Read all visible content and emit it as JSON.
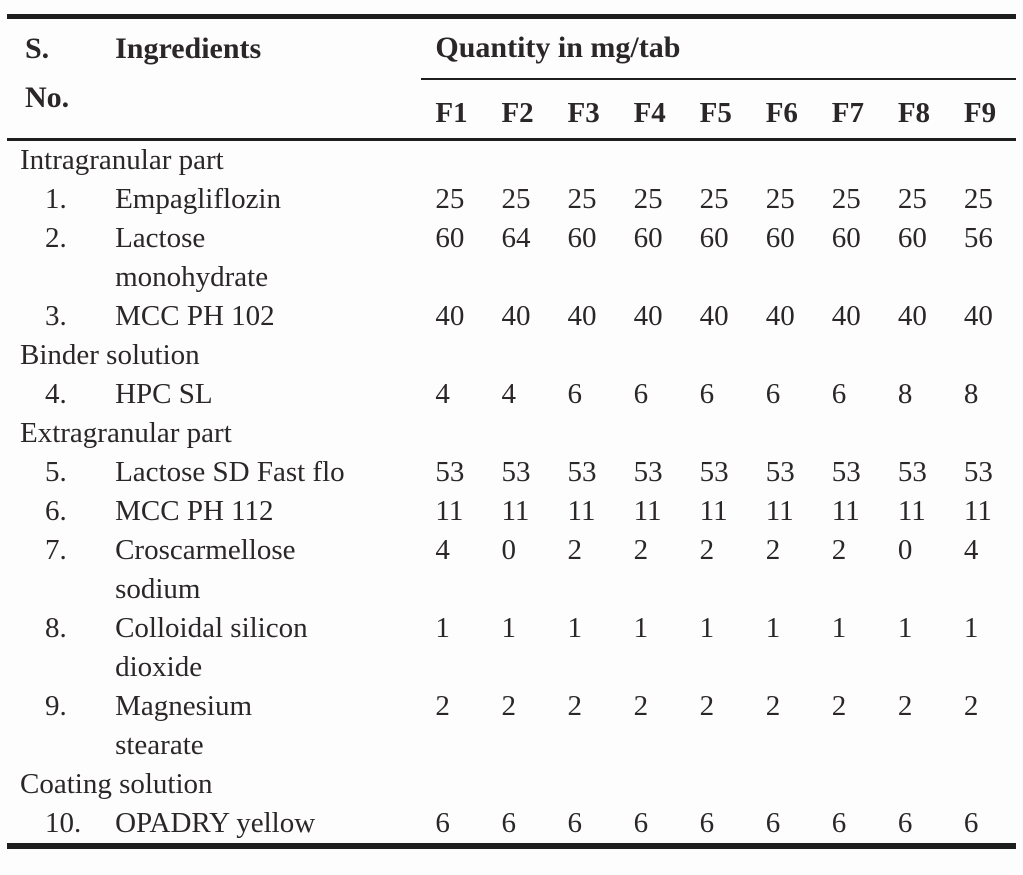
{
  "table": {
    "header": {
      "sno_line1": "S.",
      "sno_line2": "No.",
      "ingredients_label": "Ingredients",
      "quantity_label": "Quantity in mg/tab",
      "formulations": [
        "F1",
        "F2",
        "F3",
        "F4",
        "F5",
        "F6",
        "F7",
        "F8",
        "F9"
      ]
    },
    "sections": [
      {
        "title": "Intragranular part",
        "rows": [
          {
            "sno": "1.",
            "ingredient": "Empagliflozin",
            "values": [
              25,
              25,
              25,
              25,
              25,
              25,
              25,
              25,
              25
            ]
          },
          {
            "sno": "2.",
            "ingredient": "Lactose\nmonohydrate",
            "values": [
              60,
              64,
              60,
              60,
              60,
              60,
              60,
              60,
              56
            ]
          },
          {
            "sno": "3.",
            "ingredient": "MCC PH 102",
            "values": [
              40,
              40,
              40,
              40,
              40,
              40,
              40,
              40,
              40
            ]
          }
        ]
      },
      {
        "title": "Binder solution",
        "rows": [
          {
            "sno": "4.",
            "ingredient": "HPC SL",
            "values": [
              4,
              4,
              6,
              6,
              6,
              6,
              6,
              8,
              8
            ]
          }
        ]
      },
      {
        "title": "Extragranular part",
        "rows": [
          {
            "sno": "5.",
            "ingredient": "Lactose SD Fast flo",
            "values": [
              53,
              53,
              53,
              53,
              53,
              53,
              53,
              53,
              53
            ]
          },
          {
            "sno": "6.",
            "ingredient": "MCC PH 112",
            "values": [
              11,
              11,
              11,
              11,
              11,
              11,
              11,
              11,
              11
            ]
          },
          {
            "sno": "7.",
            "ingredient": "Croscarmellose\nsodium",
            "values": [
              4,
              0,
              2,
              2,
              2,
              2,
              2,
              0,
              4
            ]
          },
          {
            "sno": "8.",
            "ingredient": "Colloidal silicon\ndioxide",
            "values": [
              1,
              1,
              1,
              1,
              1,
              1,
              1,
              1,
              1
            ]
          },
          {
            "sno": "9.",
            "ingredient": "Magnesium\nstearate",
            "values": [
              2,
              2,
              2,
              2,
              2,
              2,
              2,
              2,
              2
            ]
          }
        ]
      },
      {
        "title": "Coating solution",
        "rows": [
          {
            "sno": "10.",
            "ingredient": "OPADRY yellow",
            "values": [
              6,
              6,
              6,
              6,
              6,
              6,
              6,
              6,
              6
            ]
          }
        ]
      }
    ]
  },
  "colors": {
    "text": "#2b2728",
    "rule": "#1e1e1e",
    "background": "#fdfdfd"
  }
}
